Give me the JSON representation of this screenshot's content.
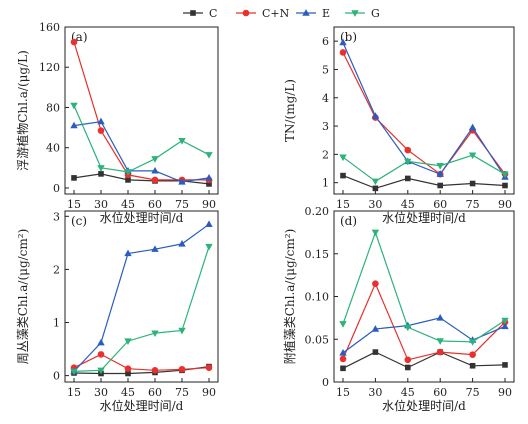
{
  "legend": {
    "entries": [
      "C",
      "C+N",
      "E",
      "G"
    ]
  },
  "chart_data": [
    {
      "type": "line",
      "panel": "(a)",
      "xlabel": "水位处理时间/d",
      "ylabel": "浮游植物Chl.a/(μg/L)",
      "x": [
        15,
        30,
        45,
        60,
        75,
        90
      ],
      "xticks": [
        "15",
        "30",
        "45",
        "60",
        "75",
        "90"
      ],
      "ylim": [
        -6,
        160
      ],
      "yticks": [
        0,
        40,
        80,
        120,
        160
      ],
      "ytick_labels": [
        "0",
        "40",
        "80",
        "120",
        "160"
      ],
      "series": [
        {
          "name": "C",
          "values": [
            10,
            14,
            8,
            7,
            7,
            4
          ]
        },
        {
          "name": "C+N",
          "values": [
            145,
            57,
            13,
            8,
            8,
            8
          ]
        },
        {
          "name": "E",
          "values": [
            62,
            66,
            17,
            17,
            6,
            10
          ]
        },
        {
          "name": "G",
          "values": [
            82,
            20,
            16,
            29,
            47,
            33
          ]
        }
      ]
    },
    {
      "type": "line",
      "panel": "(b)",
      "xlabel": "水位处理时间/d",
      "ylabel": "TN/(mg/L)",
      "x": [
        15,
        30,
        45,
        60,
        75,
        90
      ],
      "xticks": [
        "15",
        "30",
        "45",
        "60",
        "75",
        "90"
      ],
      "ylim": [
        0.6,
        6.5
      ],
      "yticks": [
        1,
        2,
        3,
        4,
        5,
        6
      ],
      "ytick_labels": [
        "1",
        "2",
        "3",
        "4",
        "5",
        "6"
      ],
      "series": [
        {
          "name": "C",
          "values": [
            1.25,
            0.8,
            1.15,
            0.9,
            0.97,
            0.9
          ]
        },
        {
          "name": "C+N",
          "values": [
            5.6,
            3.3,
            2.15,
            1.3,
            2.85,
            1.3
          ]
        },
        {
          "name": "E",
          "values": [
            5.95,
            3.35,
            1.75,
            1.3,
            2.95,
            1.2
          ]
        },
        {
          "name": "G",
          "values": [
            1.9,
            1.05,
            1.75,
            1.6,
            1.97,
            1.3
          ]
        }
      ]
    },
    {
      "type": "line",
      "panel": "(c)",
      "xlabel": "水位处理时间/d",
      "ylabel": "周丛藻类Chl.a/(μg/cm²)",
      "x": [
        15,
        30,
        45,
        60,
        75,
        90
      ],
      "xticks": [
        "15",
        "30",
        "45",
        "60",
        "75",
        "90"
      ],
      "ylim": [
        -0.12,
        3.1
      ],
      "yticks": [
        0,
        1,
        2,
        3
      ],
      "ytick_labels": [
        "0",
        "1",
        "2",
        "3"
      ],
      "series": [
        {
          "name": "C",
          "values": [
            0.05,
            0.04,
            0.04,
            0.06,
            0.1,
            0.17
          ]
        },
        {
          "name": "C+N",
          "values": [
            0.15,
            0.4,
            0.13,
            0.1,
            0.12,
            0.15
          ]
        },
        {
          "name": "E",
          "values": [
            0.08,
            0.62,
            2.3,
            2.38,
            2.48,
            2.85
          ]
        },
        {
          "name": "G",
          "values": [
            0.08,
            0.1,
            0.65,
            0.8,
            0.85,
            2.43
          ]
        }
      ]
    },
    {
      "type": "line",
      "panel": "(d)",
      "xlabel": "水位处理时间/d",
      "ylabel": "附植藻类Chl.a/(μg/cm²)",
      "x": [
        15,
        30,
        45,
        60,
        75,
        90
      ],
      "xticks": [
        "15",
        "30",
        "45",
        "60",
        "75",
        "90"
      ],
      "ylim": [
        0,
        0.2
      ],
      "yticks": [
        0,
        0.05,
        0.1,
        0.15,
        0.2
      ],
      "ytick_labels": [
        "0",
        "0.05",
        "0.10",
        "0.15",
        "0.20"
      ],
      "series": [
        {
          "name": "C",
          "values": [
            0.016,
            0.035,
            0.017,
            0.035,
            0.019,
            0.02
          ]
        },
        {
          "name": "C+N",
          "values": [
            0.027,
            0.115,
            0.026,
            0.035,
            0.032,
            0.07
          ]
        },
        {
          "name": "E",
          "values": [
            0.034,
            0.062,
            0.066,
            0.075,
            0.049,
            0.065
          ]
        },
        {
          "name": "G",
          "values": [
            0.068,
            0.175,
            0.064,
            0.048,
            0.047,
            0.072
          ]
        }
      ]
    }
  ],
  "colors": {
    "C": "#333333",
    "C+N": "#e8302c",
    "E": "#2a5dbf",
    "G": "#2bb37a"
  },
  "markers": {
    "C": "square",
    "C+N": "circle",
    "E": "triangle-up",
    "G": "triangle-down"
  }
}
